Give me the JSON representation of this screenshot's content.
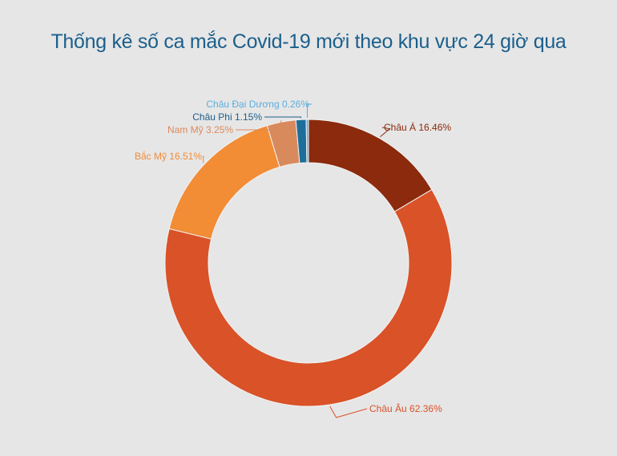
{
  "chart_data": {
    "type": "pie",
    "style": "donut",
    "title": "Thống kê số ca mắc Covid-19 mới theo khu vực 24 giờ qua",
    "legend": "none",
    "slices": [
      {
        "label": "Châu Á 16.46%",
        "name": "Châu Á",
        "value": 16.46,
        "color": "#8b2a0c",
        "label_color": "#8b2a0c"
      },
      {
        "label": "Châu Âu 62.36%",
        "name": "Châu Âu",
        "value": 62.36,
        "color": "#d95228",
        "label_color": "#d95228"
      },
      {
        "label": "Bắc Mỹ 16.51%",
        "name": "Bắc Mỹ",
        "value": 16.51,
        "color": "#f28c35",
        "label_color": "#f28c35"
      },
      {
        "label": "Nam Mỹ 3.25%",
        "name": "Nam Mỹ",
        "value": 3.25,
        "color": "#d98a5d",
        "label_color": "#d98a5d"
      },
      {
        "label": "Châu Phi  1.15%",
        "name": "Châu Phi",
        "value": 1.15,
        "color": "#1d6e99",
        "label_color": "#1d5e8a"
      },
      {
        "label": "Châu Đại Dương 0.26%",
        "name": "Châu Đại Dương",
        "value": 0.26,
        "color": "#5aaee0",
        "label_color": "#5aaee0"
      }
    ]
  }
}
